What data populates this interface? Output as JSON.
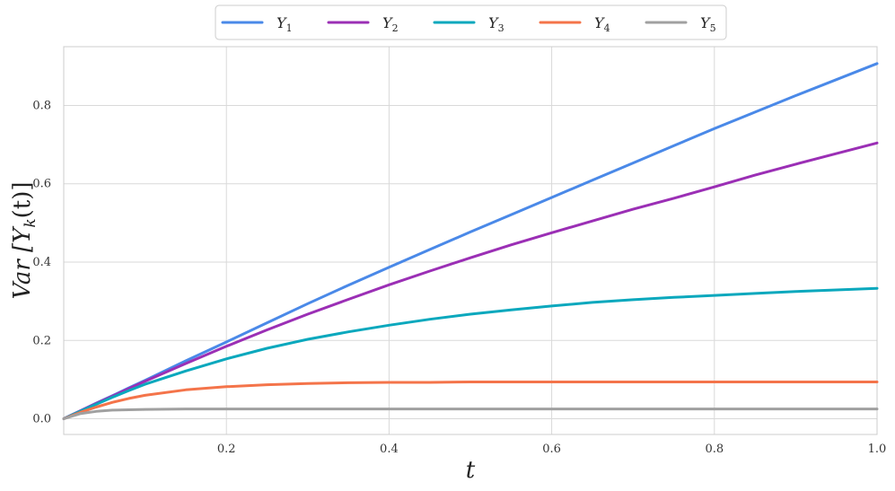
{
  "chart_data": {
    "type": "line",
    "xlabel": "t",
    "ylabel": "Var [Y_k(t)]",
    "ylabel_parts": {
      "pre": "Var [",
      "var": "Y",
      "sub": "k",
      "post": "(t)]"
    },
    "xlim": [
      0.0,
      1.0
    ],
    "ylim": [
      -0.04,
      0.95
    ],
    "xticks": [
      "0.2",
      "0.4",
      "0.6",
      "0.8",
      "1.0"
    ],
    "yticks": [
      "0.0",
      "0.2",
      "0.4",
      "0.6",
      "0.8"
    ],
    "grid": true,
    "legend_position": "top-center",
    "x": [
      0.0,
      0.02,
      0.04,
      0.06,
      0.08,
      0.1,
      0.15,
      0.2,
      0.25,
      0.3,
      0.35,
      0.4,
      0.45,
      0.5,
      0.55,
      0.6,
      0.65,
      0.7,
      0.75,
      0.8,
      0.85,
      0.9,
      0.95,
      1.0
    ],
    "series": [
      {
        "name": "Y",
        "sub": "1",
        "color": "#4a89e8",
        "values": [
          0.0,
          0.02,
          0.04,
          0.059,
          0.079,
          0.098,
          0.148,
          0.196,
          0.245,
          0.294,
          0.341,
          0.387,
          0.432,
          0.477,
          0.521,
          0.565,
          0.609,
          0.653,
          0.697,
          0.741,
          0.783,
          0.825,
          0.866,
          0.907
        ]
      },
      {
        "name": "Y",
        "sub": "2",
        "color": "#9b2fb5",
        "values": [
          0.0,
          0.02,
          0.039,
          0.058,
          0.077,
          0.096,
          0.141,
          0.185,
          0.227,
          0.267,
          0.305,
          0.342,
          0.377,
          0.411,
          0.444,
          0.475,
          0.505,
          0.535,
          0.563,
          0.592,
          0.622,
          0.65,
          0.677,
          0.704
        ]
      },
      {
        "name": "Y",
        "sub": "3",
        "color": "#0aa8bd",
        "values": [
          0.0,
          0.019,
          0.037,
          0.055,
          0.072,
          0.088,
          0.122,
          0.153,
          0.18,
          0.203,
          0.222,
          0.239,
          0.254,
          0.267,
          0.278,
          0.288,
          0.297,
          0.304,
          0.31,
          0.315,
          0.32,
          0.325,
          0.329,
          0.333
        ]
      },
      {
        "name": "Y",
        "sub": "4",
        "color": "#f4744a",
        "values": [
          0.0,
          0.016,
          0.03,
          0.042,
          0.052,
          0.06,
          0.074,
          0.082,
          0.087,
          0.09,
          0.092,
          0.093,
          0.093,
          0.094,
          0.094,
          0.094,
          0.094,
          0.094,
          0.094,
          0.094,
          0.094,
          0.094,
          0.094,
          0.094
        ]
      },
      {
        "name": "Y",
        "sub": "5",
        "color": "#a0a0a0",
        "values": [
          0.0,
          0.013,
          0.019,
          0.022,
          0.023,
          0.024,
          0.025,
          0.025,
          0.025,
          0.025,
          0.025,
          0.025,
          0.025,
          0.025,
          0.025,
          0.025,
          0.025,
          0.025,
          0.025,
          0.025,
          0.025,
          0.025,
          0.025,
          0.025
        ]
      }
    ]
  }
}
